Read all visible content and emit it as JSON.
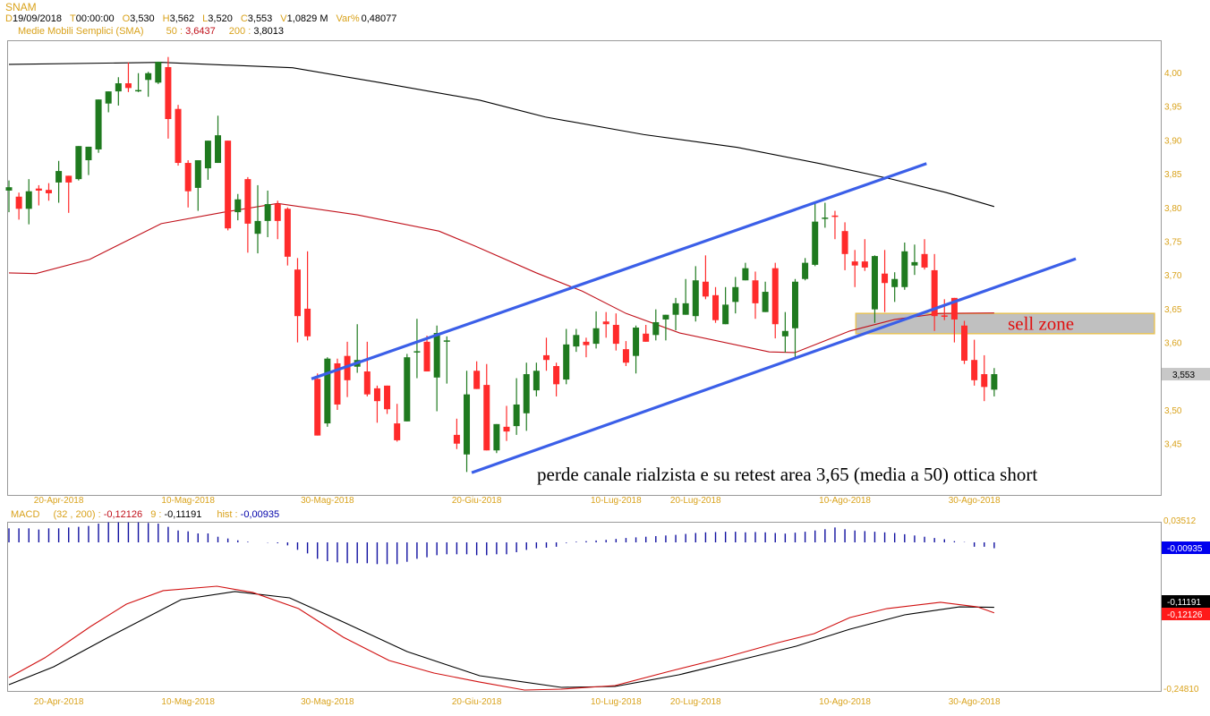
{
  "header": {
    "symbol": "SNAM",
    "fields": [
      {
        "label": "D",
        "value": "19/09/2018"
      },
      {
        "label": "T",
        "value": "00:00:00"
      },
      {
        "label": "O",
        "value": "3,530"
      },
      {
        "label": "H",
        "value": "3,562"
      },
      {
        "label": "L",
        "value": "3,520"
      },
      {
        "label": "C",
        "value": "3,553"
      },
      {
        "label": "V",
        "value": "1,0829 M"
      },
      {
        "label": "Var%",
        "value": "0,48077"
      }
    ],
    "sma_label": "Medie Mobili Semplici (SMA)",
    "sma50_label": "50 :",
    "sma50_value": "3,6437",
    "sma200_label": "200 :",
    "sma200_value": "3,8013"
  },
  "macd_header": {
    "label": "MACD",
    "params": "(32 , 200) :",
    "macd_value": "-0,12126",
    "signal_label": "9 :",
    "signal_value": "-0,11191",
    "hist_label": "hist :",
    "hist_value": "-0,00935"
  },
  "colors": {
    "up": "#1f7a1f",
    "down": "#ff2b2b",
    "sma50": "#c0101a",
    "sma200": "#000000",
    "trend": "#3b5fe8",
    "axis": "#d9a21b",
    "hist": "#1010a0",
    "zone_fill": "#c0c0c0",
    "zone_border": "#e6c25a"
  },
  "chart_data": [
    {
      "type": "candlestick",
      "title": "SNAM",
      "ylim": [
        3.4,
        4.03
      ],
      "y_ticks": [
        {
          "v": 4.0,
          "t": "4,00"
        },
        {
          "v": 3.95,
          "t": "3,95"
        },
        {
          "v": 3.9,
          "t": "3,90"
        },
        {
          "v": 3.85,
          "t": "3,85"
        },
        {
          "v": 3.8,
          "t": "3,80"
        },
        {
          "v": 3.75,
          "t": "3,75"
        },
        {
          "v": 3.7,
          "t": "3,70"
        },
        {
          "v": 3.65,
          "t": "3,65"
        },
        {
          "v": 3.6,
          "t": "3,60"
        },
        {
          "v": 3.5,
          "t": "3,50"
        },
        {
          "v": 3.45,
          "t": "3,45"
        }
      ],
      "last_price": {
        "v": 3.553,
        "t": "3,553"
      },
      "x_ticks": [
        {
          "i": 5,
          "t": "20-Apr-2018"
        },
        {
          "i": 18,
          "t": "10-Mag-2018"
        },
        {
          "i": 32,
          "t": "30-Mag-2018"
        },
        {
          "i": 47,
          "t": "20-Giu-2018"
        },
        {
          "i": 61,
          "t": "10-Lug-2018"
        },
        {
          "i": 69,
          "t": "20-Lug-2018"
        },
        {
          "i": 84,
          "t": "10-Ago-2018"
        },
        {
          "i": 97,
          "t": "30-Ago-2018"
        }
      ],
      "ohlc": [
        [
          3.825,
          3.84,
          3.793,
          3.83
        ],
        [
          3.816,
          3.822,
          3.782,
          3.798
        ],
        [
          3.798,
          3.842,
          3.775,
          3.824
        ],
        [
          3.828,
          3.833,
          3.803,
          3.825
        ],
        [
          3.826,
          3.836,
          3.81,
          3.821
        ],
        [
          3.837,
          3.869,
          3.807,
          3.854
        ],
        [
          3.847,
          3.847,
          3.792,
          3.837
        ],
        [
          3.842,
          3.891,
          3.84,
          3.891
        ],
        [
          3.87,
          3.89,
          3.848,
          3.89
        ],
        [
          3.886,
          3.96,
          3.881,
          3.96
        ],
        [
          3.954,
          3.972,
          3.941,
          3.972
        ],
        [
          3.972,
          3.993,
          3.951,
          3.984
        ],
        [
          3.984,
          4.015,
          3.971,
          3.977
        ],
        [
          3.973,
          3.999,
          3.971,
          3.974
        ],
        [
          3.989,
          4.001,
          3.964,
          3.999
        ],
        [
          3.985,
          4.016,
          3.983,
          4.016
        ],
        [
          4.008,
          4.023,
          3.902,
          3.931
        ],
        [
          3.946,
          3.952,
          3.862,
          3.866
        ],
        [
          3.866,
          3.87,
          3.8,
          3.824
        ],
        [
          3.829,
          3.87,
          3.795,
          3.87
        ],
        [
          3.858,
          3.899,
          3.841,
          3.899
        ],
        [
          3.866,
          3.936,
          3.866,
          3.907
        ],
        [
          3.899,
          3.899,
          3.766,
          3.769
        ],
        [
          3.793,
          3.82,
          3.781,
          3.812
        ],
        [
          3.842,
          3.845,
          3.733,
          3.776
        ],
        [
          3.761,
          3.833,
          3.732,
          3.78
        ],
        [
          3.78,
          3.825,
          3.756,
          3.805
        ],
        [
          3.805,
          3.81,
          3.753,
          3.78
        ],
        [
          3.798,
          3.8,
          3.714,
          3.727
        ],
        [
          3.708,
          3.725,
          3.6,
          3.639
        ],
        [
          3.65,
          3.735,
          3.603,
          3.609
        ],
        [
          3.546,
          3.554,
          3.462,
          3.462
        ],
        [
          3.48,
          3.578,
          3.475,
          3.576
        ],
        [
          3.569,
          3.576,
          3.5,
          3.508
        ],
        [
          3.58,
          3.601,
          3.519,
          3.544
        ],
        [
          3.564,
          3.627,
          3.555,
          3.574
        ],
        [
          3.557,
          3.601,
          3.52,
          3.523
        ],
        [
          3.532,
          3.536,
          3.481,
          3.513
        ],
        [
          3.536,
          3.536,
          3.494,
          3.501
        ],
        [
          3.48,
          3.509,
          3.453,
          3.455
        ],
        [
          3.483,
          3.583,
          3.483,
          3.578
        ],
        [
          3.587,
          3.635,
          3.547,
          3.587
        ],
        [
          3.601,
          3.61,
          3.557,
          3.557
        ],
        [
          3.548,
          3.625,
          3.498,
          3.614
        ],
        [
          3.603,
          3.609,
          3.539,
          3.603
        ],
        [
          3.463,
          3.487,
          3.442,
          3.45
        ],
        [
          3.434,
          3.558,
          3.408,
          3.523
        ],
        [
          3.558,
          3.572,
          3.531,
          3.531
        ],
        [
          3.537,
          3.568,
          3.44,
          3.44
        ],
        [
          3.44,
          3.479,
          3.436,
          3.479
        ],
        [
          3.475,
          3.506,
          3.454,
          3.468
        ],
        [
          3.476,
          3.547,
          3.463,
          3.508
        ],
        [
          3.495,
          3.57,
          3.469,
          3.553
        ],
        [
          3.529,
          3.57,
          3.52,
          3.558
        ],
        [
          3.581,
          3.607,
          3.558,
          3.574
        ],
        [
          3.565,
          3.57,
          3.52,
          3.538
        ],
        [
          3.545,
          3.62,
          3.538,
          3.597
        ],
        [
          3.594,
          3.62,
          3.586,
          3.611
        ],
        [
          3.601,
          3.607,
          3.578,
          3.596
        ],
        [
          3.598,
          3.646,
          3.591,
          3.621
        ],
        [
          3.631,
          3.645,
          3.607,
          3.627
        ],
        [
          3.626,
          3.643,
          3.588,
          3.598
        ],
        [
          3.59,
          3.602,
          3.565,
          3.57
        ],
        [
          3.58,
          3.625,
          3.554,
          3.622
        ],
        [
          3.613,
          3.626,
          3.601,
          3.601
        ],
        [
          3.611,
          3.649,
          3.603,
          3.63
        ],
        [
          3.634,
          3.641,
          3.603,
          3.641
        ],
        [
          3.641,
          3.666,
          3.618,
          3.658
        ],
        [
          3.641,
          3.694,
          3.641,
          3.658
        ],
        [
          3.639,
          3.713,
          3.631,
          3.692
        ],
        [
          3.69,
          3.729,
          3.664,
          3.668
        ],
        [
          3.67,
          3.682,
          3.629,
          3.633
        ],
        [
          3.627,
          3.682,
          3.627,
          3.656
        ],
        [
          3.66,
          3.697,
          3.643,
          3.682
        ],
        [
          3.692,
          3.718,
          3.692,
          3.71
        ],
        [
          3.692,
          3.705,
          3.635,
          3.658
        ],
        [
          3.645,
          3.69,
          3.645,
          3.675
        ],
        [
          3.71,
          3.718,
          3.606,
          3.627
        ],
        [
          3.609,
          3.645,
          3.585,
          3.617
        ],
        [
          3.621,
          3.694,
          3.577,
          3.69
        ],
        [
          3.694,
          3.725,
          3.692,
          3.718
        ],
        [
          3.715,
          3.806,
          3.713,
          3.779
        ],
        [
          3.785,
          3.807,
          3.77,
          3.785
        ],
        [
          3.788,
          3.795,
          3.753,
          3.786
        ],
        [
          3.765,
          3.778,
          3.707,
          3.731
        ],
        [
          3.72,
          3.737,
          3.682,
          3.714
        ],
        [
          3.72,
          3.753,
          3.706,
          3.711
        ],
        [
          3.649,
          3.729,
          3.629,
          3.728
        ],
        [
          3.702,
          3.737,
          3.645,
          3.688
        ],
        [
          3.682,
          3.704,
          3.66,
          3.694
        ],
        [
          3.682,
          3.748,
          3.678,
          3.735
        ],
        [
          3.714,
          3.745,
          3.7,
          3.719
        ],
        [
          3.731,
          3.753,
          3.708,
          3.711
        ],
        [
          3.707,
          3.731,
          3.617,
          3.639
        ],
        [
          3.64,
          3.664,
          3.633,
          3.638
        ],
        [
          3.666,
          3.666,
          3.6,
          3.634
        ],
        [
          3.625,
          3.632,
          3.568,
          3.573
        ],
        [
          3.574,
          3.604,
          3.536,
          3.544
        ],
        [
          3.553,
          3.581,
          3.513,
          3.534
        ],
        [
          3.53,
          3.562,
          3.52,
          3.553
        ]
      ],
      "sma50": [
        [
          0,
          3.703
        ],
        [
          2.7,
          3.702
        ],
        [
          8.1,
          3.723
        ],
        [
          15.3,
          3.776
        ],
        [
          21.6,
          3.793
        ],
        [
          27,
          3.806
        ],
        [
          35,
          3.789
        ],
        [
          43.2,
          3.765
        ],
        [
          46.8,
          3.743
        ],
        [
          53,
          3.703
        ],
        [
          57.6,
          3.676
        ],
        [
          62,
          3.643
        ],
        [
          67.4,
          3.614
        ],
        [
          76.4,
          3.586
        ],
        [
          79,
          3.585
        ],
        [
          84.5,
          3.617
        ],
        [
          89,
          3.634
        ],
        [
          93.5,
          3.643
        ],
        [
          99,
          3.6437
        ]
      ],
      "sma200": [
        [
          0,
          4.012
        ],
        [
          15.3,
          4.015
        ],
        [
          28.5,
          4.007
        ],
        [
          37.3,
          3.985
        ],
        [
          47.3,
          3.959
        ],
        [
          53.9,
          3.934
        ],
        [
          63.8,
          3.908
        ],
        [
          73.2,
          3.889
        ],
        [
          81.5,
          3.865
        ],
        [
          88.7,
          3.842
        ],
        [
          94.2,
          3.822
        ],
        [
          99,
          3.8013
        ]
      ],
      "trendlines": [
        {
          "name": "upper-channel",
          "points": [
            [
              30.4,
              3.546
            ],
            [
              92.2,
              3.865
            ]
          ]
        },
        {
          "name": "lower-channel",
          "points": [
            [
              46.5,
              3.407
            ],
            [
              107.2,
              3.724
            ]
          ]
        }
      ],
      "zone": {
        "label": "sell zone",
        "from_i": 85.1,
        "to_i": 115.1,
        "low": 3.613,
        "high": 3.643
      },
      "annotation": "perde canale rialzista e su retest area 3,65 (media a 50) ottica short"
    },
    {
      "type": "line",
      "title": "MACD (32, 200), 9",
      "ylim": [
        -0.2481,
        0.03512
      ],
      "y_ticks": [
        {
          "v": 0.03512,
          "t": "0,03512"
        },
        {
          "v": -0.2481,
          "t": "-0,24810"
        }
      ],
      "badges": [
        {
          "v": "-0,00935",
          "bg": "#0000ee"
        },
        {
          "v": "-0,11191",
          "bg": "#000000"
        },
        {
          "v": "-0,12126",
          "bg": "#ff1a1a"
        }
      ],
      "macd": [
        [
          0,
          -0.2301
        ],
        [
          3.6,
          -0.197
        ],
        [
          8.2,
          -0.1442
        ],
        [
          11.8,
          -0.1065
        ],
        [
          15.5,
          -0.0839
        ],
        [
          20.9,
          -0.0764
        ],
        [
          24.5,
          -0.0869
        ],
        [
          29.1,
          -0.1141
        ],
        [
          33.6,
          -0.1623
        ],
        [
          38.2,
          -0.2015
        ],
        [
          42.7,
          -0.2226
        ],
        [
          47.3,
          -0.2377
        ],
        [
          51.8,
          -0.2512
        ],
        [
          55.5,
          -0.2497
        ],
        [
          60.9,
          -0.2437
        ],
        [
          66.4,
          -0.2196
        ],
        [
          71.8,
          -0.197
        ],
        [
          77.3,
          -0.1713
        ],
        [
          80.9,
          -0.1563
        ],
        [
          84.5,
          -0.1291
        ],
        [
          88.2,
          -0.1141
        ],
        [
          93.6,
          -0.1035
        ],
        [
          97.3,
          -0.1111
        ],
        [
          99,
          -0.12126
        ]
      ],
      "signal": [
        [
          0,
          -0.2422
        ],
        [
          4.5,
          -0.212
        ],
        [
          10,
          -0.1623
        ],
        [
          17.3,
          -0.099
        ],
        [
          22.7,
          -0.0854
        ],
        [
          28.2,
          -0.096
        ],
        [
          33.6,
          -0.1367
        ],
        [
          40,
          -0.1864
        ],
        [
          47.3,
          -0.2271
        ],
        [
          55.5,
          -0.2467
        ],
        [
          60.9,
          -0.2452
        ],
        [
          67.3,
          -0.2256
        ],
        [
          73.6,
          -0.2
        ],
        [
          79.1,
          -0.1774
        ],
        [
          84.5,
          -0.1487
        ],
        [
          90,
          -0.1246
        ],
        [
          95.5,
          -0.1111
        ],
        [
          99,
          -0.11191
        ]
      ],
      "hist": [
        0.0224,
        0.0224,
        0.0224,
        0.0205,
        0.0224,
        0.0224,
        0.0238,
        0.0248,
        0.0262,
        0.03,
        0.0319,
        0.0319,
        0.0319,
        0.0319,
        0.031,
        0.03,
        0.0248,
        0.019,
        0.0176,
        0.0143,
        0.0143,
        0.009,
        0.0062,
        0.0033,
        0.001,
        0.0,
        -0.0005,
        -0.0014,
        -0.0048,
        -0.0119,
        -0.0176,
        -0.0262,
        -0.03,
        -0.0319,
        -0.0333,
        -0.0333,
        -0.0333,
        -0.0347,
        -0.0347,
        -0.0347,
        -0.031,
        -0.0262,
        -0.0238,
        -0.0205,
        -0.019,
        -0.019,
        -0.019,
        -0.0205,
        -0.0205,
        -0.019,
        -0.019,
        -0.0157,
        -0.012,
        -0.0095,
        -0.0085,
        -0.007,
        -0.001,
        0.001,
        0.002,
        0.003,
        0.004,
        0.0055,
        0.007,
        0.008,
        0.009,
        0.01,
        0.011,
        0.012,
        0.0135,
        0.015,
        0.016,
        0.0165,
        0.017,
        0.017,
        0.016,
        0.0165,
        0.016,
        0.015,
        0.014,
        0.0155,
        0.017,
        0.019,
        0.021,
        0.0238,
        0.021,
        0.019,
        0.018,
        0.017,
        0.016,
        0.015,
        0.013,
        0.011,
        0.009,
        0.007,
        0.005,
        0.002,
        0.0005,
        -0.007,
        -0.007,
        -0.00935
      ]
    }
  ]
}
